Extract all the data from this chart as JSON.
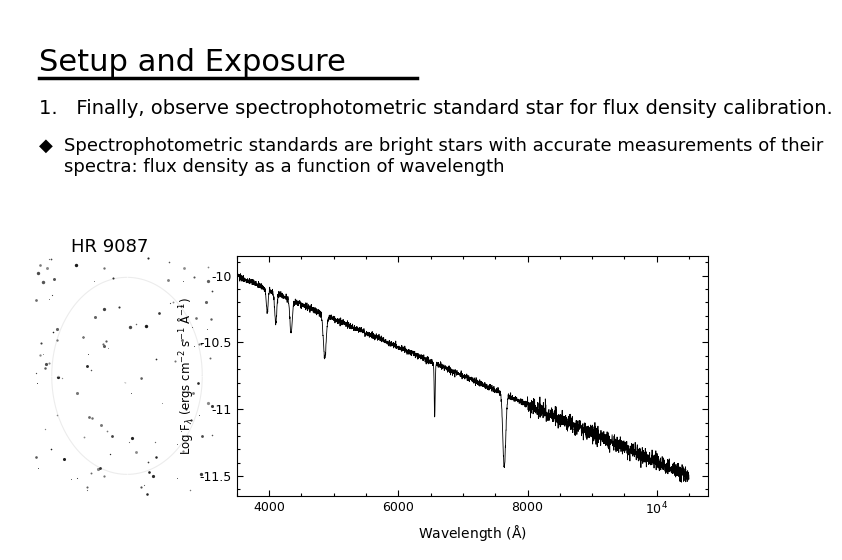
{
  "title": "Setup and Exposure",
  "title_fontsize": 22,
  "title_font": "sans-serif",
  "title_color": "#000000",
  "background_color": "#ffffff",
  "numbered_item": "1.   Finally, observe spectrophotometric standard star for flux density calibration.",
  "numbered_fontsize": 14,
  "bullet_text_line1": "Spectrophotometric standards are bright stars with accurate measurements of their",
  "bullet_text_line2": "spectra: flux density as a function of wavelength",
  "bullet_fontsize": 13,
  "star_label": "HR 9087",
  "star_label_fontsize": 13
}
